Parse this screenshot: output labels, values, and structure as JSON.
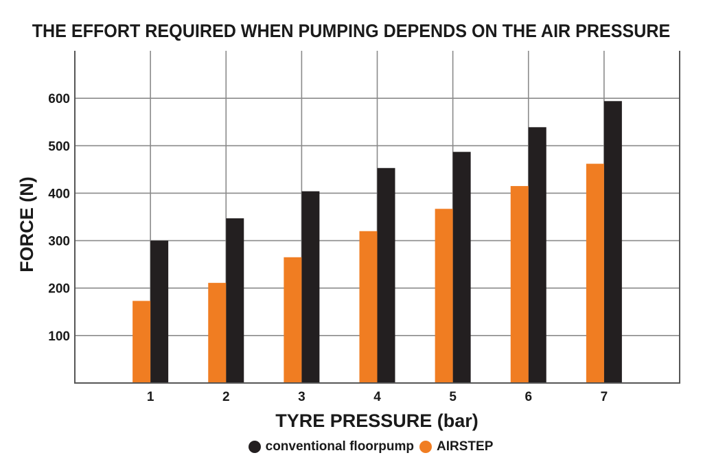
{
  "chart_data": {
    "type": "bar",
    "title": "THE EFFORT REQUIRED WHEN PUMPING DEPENDS ON THE AIR PRESSURE",
    "xlabel": "TYRE PRESSURE (bar)",
    "ylabel": "FORCE (N)",
    "categories": [
      "1",
      "2",
      "3",
      "4",
      "5",
      "6",
      "7"
    ],
    "yticks": [
      100,
      200,
      300,
      400,
      500,
      600
    ],
    "ylim": [
      0,
      700
    ],
    "grid": true,
    "legend_position": "bottom",
    "series": [
      {
        "name": "conventional floorpump",
        "color": "#231f20",
        "values": [
          300,
          347,
          404,
          453,
          487,
          539,
          594
        ]
      },
      {
        "name": "AIRSTEP",
        "color": "#f07d22",
        "values": [
          173,
          211,
          265,
          320,
          367,
          415,
          462
        ]
      }
    ]
  }
}
